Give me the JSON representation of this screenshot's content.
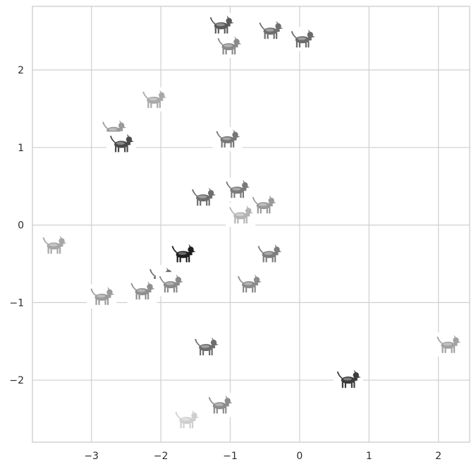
{
  "chart_data": {
    "type": "scatter",
    "title": "",
    "xlabel": "",
    "ylabel": "",
    "xlim": [
      -3.85,
      2.45
    ],
    "ylim": [
      -2.8,
      2.82
    ],
    "xticks": [
      -3,
      -2,
      -1,
      0,
      1,
      2
    ],
    "yticks": [
      -2,
      -1,
      0,
      1,
      2
    ],
    "xtick_labels": [
      "−3",
      "−2",
      "−1",
      "0",
      "1",
      "2"
    ],
    "ytick_labels": [
      "−2",
      "−1",
      "0",
      "1",
      "2"
    ],
    "grid": true,
    "marker": "dog-breed-image",
    "points": [
      {
        "x": -1.13,
        "y": 2.57,
        "icon": "dog-icon",
        "tone": "#5a5a5a"
      },
      {
        "x": -1.02,
        "y": 2.3,
        "icon": "dog-icon",
        "tone": "#8a8a8a"
      },
      {
        "x": -0.42,
        "y": 2.5,
        "icon": "dog-icon",
        "tone": "#6f6f6f"
      },
      {
        "x": 0.04,
        "y": 2.39,
        "icon": "dog-icon",
        "tone": "#6a6a6a"
      },
      {
        "x": -2.1,
        "y": 1.61,
        "icon": "dog-icon",
        "tone": "#a8a8a8"
      },
      {
        "x": -2.68,
        "y": 1.22,
        "icon": "dog-icon",
        "tone": "#9a9a9a"
      },
      {
        "x": -2.57,
        "y": 1.04,
        "icon": "dog-icon",
        "tone": "#4a4a4a"
      },
      {
        "x": -1.04,
        "y": 1.1,
        "icon": "dog-icon",
        "tone": "#777777"
      },
      {
        "x": -1.39,
        "y": 0.35,
        "icon": "dog-icon",
        "tone": "#6e6e6e"
      },
      {
        "x": -0.9,
        "y": 0.45,
        "icon": "dog-icon",
        "tone": "#7a7a7a"
      },
      {
        "x": -0.52,
        "y": 0.25,
        "icon": "dog-icon",
        "tone": "#999999"
      },
      {
        "x": -0.85,
        "y": 0.12,
        "icon": "dog-icon",
        "tone": "#b4b4b4"
      },
      {
        "x": -3.54,
        "y": -0.27,
        "icon": "dog-icon",
        "tone": "#a6a6a6"
      },
      {
        "x": -1.68,
        "y": -0.38,
        "icon": "dog-icon",
        "tone": "#1e1e1e"
      },
      {
        "x": -0.44,
        "y": -0.38,
        "icon": "dog-icon",
        "tone": "#7d7d7d"
      },
      {
        "x": -2.0,
        "y": -0.68,
        "icon": "dog-icon",
        "tone": "#6f6f6f"
      },
      {
        "x": -1.86,
        "y": -0.77,
        "icon": "dog-icon",
        "tone": "#8a8a8a"
      },
      {
        "x": -2.27,
        "y": -0.86,
        "icon": "dog-icon",
        "tone": "#8f8f8f"
      },
      {
        "x": -2.85,
        "y": -0.93,
        "icon": "dog-icon",
        "tone": "#9c9c9c"
      },
      {
        "x": -0.73,
        "y": -0.77,
        "icon": "dog-icon",
        "tone": "#8c8c8c"
      },
      {
        "x": -1.35,
        "y": -1.58,
        "icon": "dog-icon",
        "tone": "#6e6e6e"
      },
      {
        "x": 2.14,
        "y": -1.55,
        "icon": "dog-icon",
        "tone": "#a2a2a2"
      },
      {
        "x": 0.7,
        "y": -2.0,
        "icon": "dog-icon",
        "tone": "#3c3c3c"
      },
      {
        "x": -1.15,
        "y": -2.33,
        "icon": "dog-icon",
        "tone": "#8c8c8c"
      },
      {
        "x": -1.63,
        "y": -2.52,
        "icon": "dog-icon",
        "tone": "#cfcfcf"
      }
    ]
  }
}
